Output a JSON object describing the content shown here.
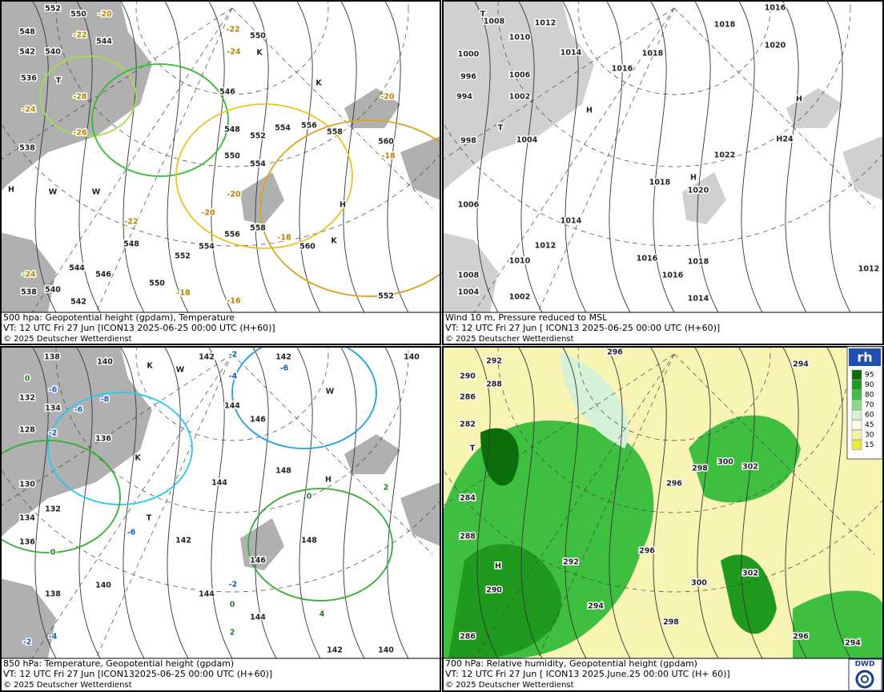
{
  "panels": [
    {
      "caption": [
        "500 hpa: Geopotential height (gpdam), Temperature",
        "VT: 12 UTC Fri  27 Jun [ICON13 2025-06-25 00:00 UTC  (H+60)]",
        "© 2025 Deutscher Wetterdienst"
      ],
      "labels": [
        "552",
        "550",
        "-20",
        "548",
        "-22",
        "544",
        "542",
        "540",
        "-22",
        "550",
        "-24",
        "536",
        "-28",
        "-24",
        "-26",
        "538",
        "546",
        "548",
        "552",
        "554",
        "556",
        "558",
        "-20",
        "560",
        "-18",
        "550",
        "554",
        "-20",
        "-20",
        "-22",
        "548",
        "556",
        "558",
        "-18",
        "560",
        "-24",
        "544",
        "546",
        "552",
        "554",
        "550",
        "-18",
        "-16",
        "538",
        "540",
        "542",
        "552",
        "H",
        "H",
        "T",
        "K",
        "K",
        "K",
        "W",
        "W"
      ]
    },
    {
      "caption": [
        "Wind 10 m, Pressure reduced to MSL",
        "VT: 12 UTC Fri  27 Jun [ ICON13 2025-06-25 00:00 UTC  (H+60)]",
        "© 2025 Deutscher Wetterdienst"
      ],
      "labels": [
        "1008",
        "1012",
        "1016",
        "1018",
        "1010",
        "1014",
        "1018",
        "1020",
        "1000",
        "996",
        "1006",
        "1016",
        "994",
        "1002",
        "H",
        "H",
        "998",
        "1004",
        "H24",
        "1022",
        "1018",
        "1020",
        "1006",
        "1014",
        "1012",
        "1010",
        "1016",
        "1018",
        "1016",
        "1008",
        "1012",
        "1004",
        "1002",
        "1014",
        "T",
        "T",
        "H"
      ]
    },
    {
      "caption": [
        "850 hPa:  Temperature, Geopotential height (gpdam)",
        "VT: 12 UTC Fri  27 Jun [ICON132025-06-25 00:00 UTC  (H+60)]",
        "© 2025 Deutscher Wetterdienst"
      ],
      "labels": [
        "138",
        "140",
        "-2",
        "142",
        "142",
        "-4",
        "-6",
        "140",
        "0",
        "132",
        "-6",
        "-8",
        "-6",
        "134",
        "-2",
        "136",
        "144",
        "146",
        "128",
        "130",
        "148",
        "H",
        "0",
        "2",
        "144",
        "132",
        "134",
        "136",
        "142",
        "-6",
        "148",
        "146",
        "0",
        "140",
        "138",
        "144",
        "-2",
        "0",
        "144",
        "4",
        "2",
        "-4",
        "-2",
        "142",
        "140",
        "K",
        "K",
        "W",
        "W",
        "T"
      ]
    },
    {
      "caption": [
        "700 hPa:  Relative humidity, Geopotential height (gpdam)",
        "VT: 12 UTC Fri  27 Jun [ ICON13  2025.June.25 00:00 UTC  (H+ 60)]",
        "© 2025 Deutscher Wetterdienst"
      ],
      "labels": [
        "296",
        "292",
        "290",
        "294",
        "288",
        "286",
        "282",
        "300",
        "302",
        "298",
        "296",
        "284",
        "288",
        "296",
        "292",
        "H",
        "300",
        "302",
        "290",
        "294",
        "298",
        "286",
        "296",
        "294",
        "T"
      ]
    }
  ],
  "legend": {
    "title": "rh",
    "levels": [
      {
        "label": "95",
        "color": "#0b6e0b"
      },
      {
        "label": "90",
        "color": "#1f9a1f"
      },
      {
        "label": "80",
        "color": "#3fbf3f"
      },
      {
        "label": "70",
        "color": "#8ed88e"
      },
      {
        "label": "60",
        "color": "#d6f2d6"
      },
      {
        "label": "45",
        "color": "#fbfbe8"
      },
      {
        "label": "30",
        "color": "#f6f3a8"
      },
      {
        "label": "15",
        "color": "#eeea3c"
      }
    ]
  },
  "logo": "DWD"
}
